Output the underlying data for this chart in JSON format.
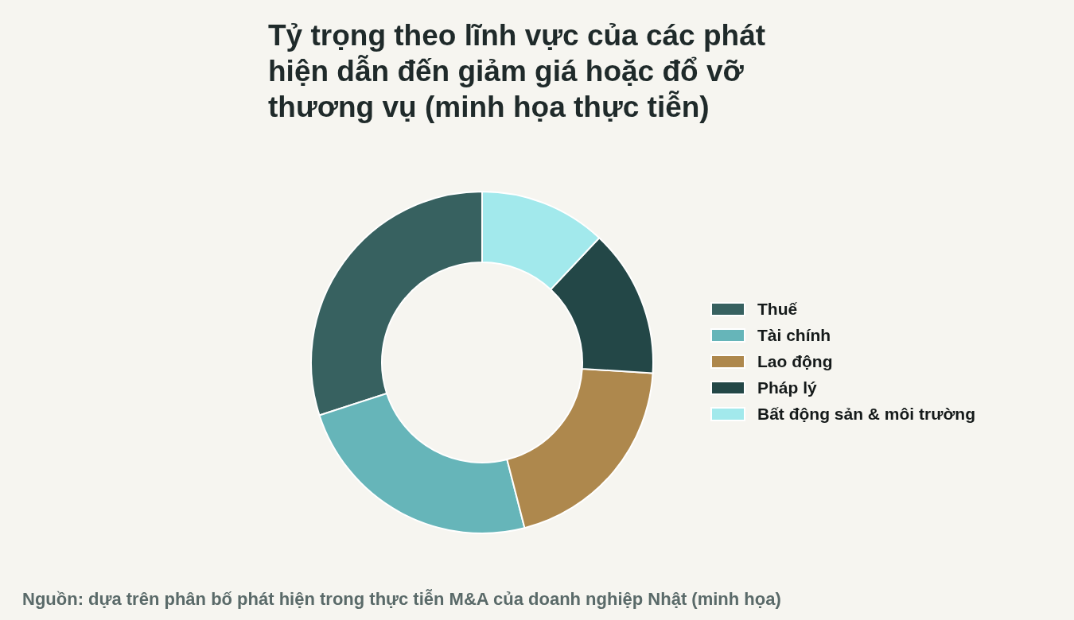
{
  "chart_data": {
    "type": "donut",
    "title": "Tỷ trọng theo lĩnh vực của các phát hiện dẫn đến giảm giá hoặc đổ vỡ thương vụ (minh họa thực tiễn)",
    "categories": [
      "Thuế",
      "Tài chính",
      "Lao động",
      "Pháp lý",
      "Bất động sản & môi trường"
    ],
    "values": [
      30,
      24,
      20,
      14,
      12
    ],
    "colors": [
      "#376160",
      "#66b5b9",
      "#ae884d",
      "#234747",
      "#a2e9ec"
    ],
    "legend": "right",
    "annotations": [
      "Nguồn: dựa trên phân bố phát hiện trong thực tiễn M&A của doanh nghiệp Nhật (minh họa)"
    ]
  }
}
